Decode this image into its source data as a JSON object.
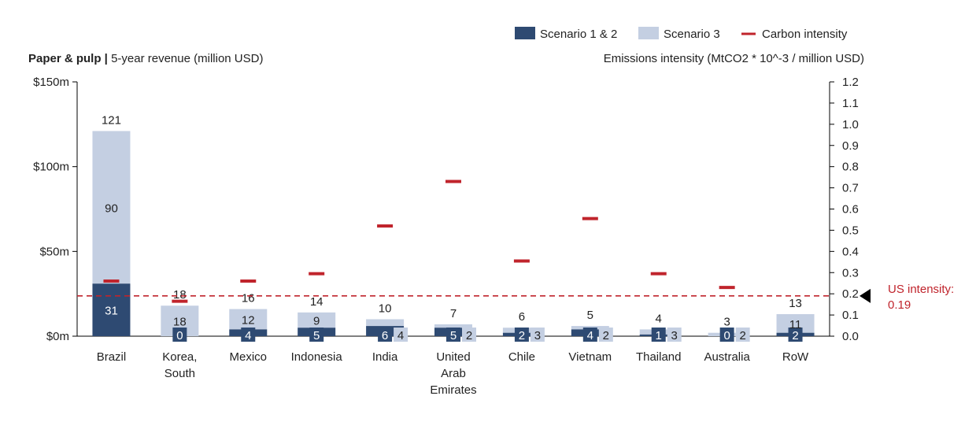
{
  "chart_data": {
    "type": "bar",
    "title_bold": "Paper & pulp",
    "title_sep": " | ",
    "title_rest": "5-year revenue (million USD)",
    "right_axis_title": "Emissions intensity (MtCO2 * 10^-3 / million USD)",
    "legend": {
      "s12": "Scenario 1 & 2",
      "s3": "Scenario 3",
      "ci": "Carbon intensity"
    },
    "colors": {
      "s12": "#2e4a72",
      "s3": "#c4cfe2",
      "ci": "#c0242c"
    },
    "left_axis": {
      "min": 0,
      "max": 150,
      "ticks": [
        {
          "v": 0,
          "label": "$0m"
        },
        {
          "v": 50,
          "label": "$50m"
        },
        {
          "v": 100,
          "label": "$100m"
        },
        {
          "v": 150,
          "label": "$150m"
        }
      ]
    },
    "right_axis": {
      "min": 0,
      "max": 1.2,
      "ticks": [
        "0.0",
        "0.1",
        "0.2",
        "0.3",
        "0.4",
        "0.5",
        "0.6",
        "0.7",
        "0.8",
        "0.9",
        "1.0",
        "1.1",
        "1.2"
      ]
    },
    "reference_line": {
      "value": 0.19,
      "label_line1": "US intensity:",
      "label_line2": "0.19"
    },
    "categories": [
      {
        "name": [
          "Brazil"
        ],
        "s12": 31,
        "s3": 90,
        "total": "121",
        "ci": 0.26
      },
      {
        "name": [
          "Korea,",
          "South"
        ],
        "s12": 0,
        "s3": 18,
        "total": "18",
        "ci": 0.165
      },
      {
        "name": [
          "Mexico"
        ],
        "s12": 4,
        "s3": 12,
        "total": "16",
        "ci": 0.26
      },
      {
        "name": [
          "Indonesia"
        ],
        "s12": 5,
        "s3": 9,
        "total": "14",
        "ci": 0.295
      },
      {
        "name": [
          "India"
        ],
        "s12": 6,
        "s3": 4,
        "total": "10",
        "ci": 0.52
      },
      {
        "name": [
          "United",
          "Arab",
          "Emirates"
        ],
        "s12": 5,
        "s3": 2,
        "total": "7",
        "ci": 0.73
      },
      {
        "name": [
          "Chile"
        ],
        "s12": 2,
        "s3": 3,
        "total": "6",
        "ci": 0.355
      },
      {
        "name": [
          "Vietnam"
        ],
        "s12": 4,
        "s3": 2,
        "total": "5",
        "ci": 0.555
      },
      {
        "name": [
          "Thailand"
        ],
        "s12": 1,
        "s3": 3,
        "total": "4",
        "ci": 0.295
      },
      {
        "name": [
          "Australia"
        ],
        "s12": 0,
        "s3": 2,
        "total": "3",
        "ci": 0.23
      },
      {
        "name": [
          "RoW"
        ],
        "s12": 2,
        "s3": 11,
        "total": "13",
        "ci": null
      }
    ]
  }
}
